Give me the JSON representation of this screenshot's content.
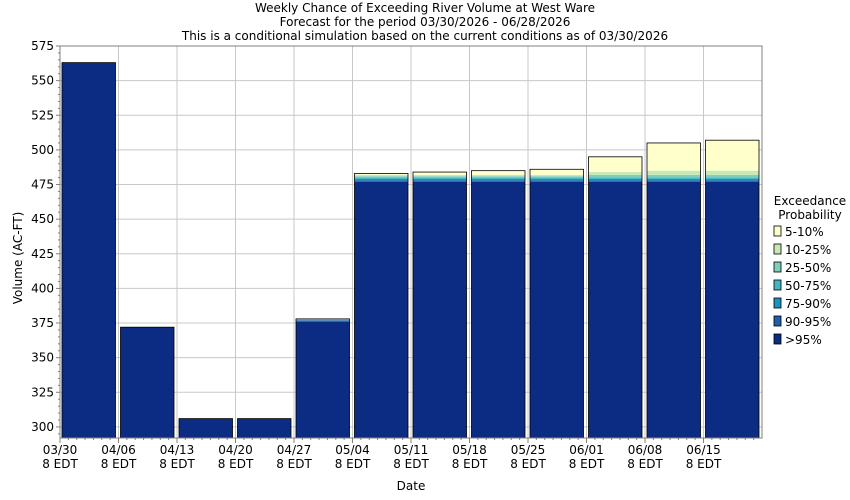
{
  "chart_data": {
    "type": "bar",
    "title_lines": [
      "Weekly Chance of Exceeding River Volume at West Ware",
      "Forecast for the period 03/30/2026 - 06/28/2026",
      "This is a conditional simulation based on the current conditions as of 03/30/2026"
    ],
    "xlabel": "Date",
    "ylabel": "Volume (AC-FT)",
    "ylim": [
      292,
      575
    ],
    "yticks": [
      300,
      325,
      350,
      375,
      400,
      425,
      450,
      475,
      500,
      525,
      550,
      575
    ],
    "x_tick_labels": [
      {
        "date": "03/30",
        "tz": "8 EDT"
      },
      {
        "date": "04/06",
        "tz": "8 EDT"
      },
      {
        "date": "04/13",
        "tz": "8 EDT"
      },
      {
        "date": "04/20",
        "tz": "8 EDT"
      },
      {
        "date": "04/27",
        "tz": "8 EDT"
      },
      {
        "date": "05/04",
        "tz": "8 EDT"
      },
      {
        "date": "05/11",
        "tz": "8 EDT"
      },
      {
        "date": "05/18",
        "tz": "8 EDT"
      },
      {
        "date": "05/25",
        "tz": "8 EDT"
      },
      {
        "date": "06/01",
        "tz": "8 EDT"
      },
      {
        "date": "06/08",
        "tz": "8 EDT"
      },
      {
        "date": "06/15",
        "tz": "8 EDT"
      }
    ],
    "grid": true,
    "legend": {
      "title_lines": [
        "Exceedance",
        "Probability"
      ],
      "placement": "right",
      "entries": [
        {
          "label": "5-10%",
          "color": "#ffffcc"
        },
        {
          "label": "10-25%",
          "color": "#c7e9b4"
        },
        {
          "label": "25-50%",
          "color": "#7fcdbb"
        },
        {
          "label": "50-75%",
          "color": "#41b6c4"
        },
        {
          "label": "75-90%",
          "color": "#1d91c0"
        },
        {
          "label": "90-95%",
          "color": "#225ea8"
        },
        {
          "label": ">95%",
          "color": "#0c2c84"
        }
      ]
    },
    "series_note_order": [
      ">95%",
      "90-95%",
      "75-90%",
      "50-75%",
      "25-50%",
      "10-25%",
      "5-10%"
    ],
    "weeks": [
      {
        "levels": [
          563,
          563,
          563,
          563,
          563,
          563,
          563
        ]
      },
      {
        "levels": [
          372,
          372,
          372,
          372,
          372,
          372,
          372
        ]
      },
      {
        "levels": [
          306,
          306,
          306,
          306,
          306,
          306,
          306
        ]
      },
      {
        "levels": [
          306,
          306,
          306,
          306,
          306,
          306,
          306
        ]
      },
      {
        "levels": [
          376,
          377,
          377,
          377,
          378,
          378,
          378
        ]
      },
      {
        "levels": [
          477,
          478,
          479,
          480,
          481,
          482,
          483
        ]
      },
      {
        "levels": [
          477,
          478,
          479,
          480,
          481,
          482,
          484
        ]
      },
      {
        "levels": [
          477,
          478,
          479,
          480,
          481,
          482,
          485
        ]
      },
      {
        "levels": [
          477,
          478,
          479,
          480,
          481,
          482,
          486
        ]
      },
      {
        "levels": [
          477,
          478,
          479,
          480,
          482,
          484,
          495
        ]
      },
      {
        "levels": [
          477,
          478,
          479,
          480,
          482,
          485,
          505
        ]
      },
      {
        "levels": [
          477,
          478,
          479,
          480,
          482,
          485,
          507
        ]
      }
    ]
  }
}
